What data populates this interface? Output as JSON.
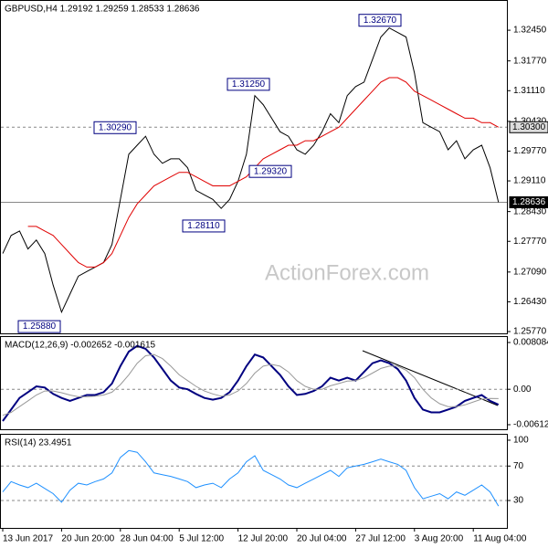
{
  "chart_data": [
    {
      "type": "line",
      "title": "GBPUSD,H4  1.29192 1.29259 1.28533 1.28636",
      "watermark": "ActionForex.com",
      "ylim": [
        1.2573,
        1.3312
      ],
      "yticks": [
        {
          "value": 1.3245,
          "label": "1.32450"
        },
        {
          "value": 1.3177,
          "label": "1.31770"
        },
        {
          "value": 1.3111,
          "label": "1.31110"
        },
        {
          "value": 1.3043,
          "label": "1.30430"
        },
        {
          "value": 1.2977,
          "label": "1.29770"
        },
        {
          "value": 1.2911,
          "label": "1.29110"
        },
        {
          "value": 1.2843,
          "label": "1.28430"
        },
        {
          "value": 1.2777,
          "label": "1.27770"
        },
        {
          "value": 1.2709,
          "label": "1.27090"
        },
        {
          "value": 1.2643,
          "label": "1.26430"
        },
        {
          "value": 1.2577,
          "label": "1.25770"
        }
      ],
      "levels": [
        {
          "value": 1.303,
          "label": "1.30300"
        },
        {
          "value": 1.28636,
          "label": "1.28636"
        }
      ],
      "annotations": [
        {
          "value": 1.3267,
          "label": "1.32670"
        },
        {
          "value": 1.3125,
          "label": "1.31250"
        },
        {
          "value": 1.3029,
          "label": "1.30290"
        },
        {
          "value": 1.2932,
          "label": "1.29320"
        },
        {
          "value": 1.2811,
          "label": "1.28110"
        },
        {
          "value": 1.2588,
          "label": "1.25880"
        }
      ],
      "series": [
        {
          "color": "#000000",
          "values": [
            1.275,
            1.279,
            1.28,
            1.276,
            1.278,
            1.275,
            1.268,
            1.262,
            1.266,
            1.27,
            1.271,
            1.272,
            1.273,
            1.277,
            1.287,
            1.297,
            1.299,
            1.301,
            1.297,
            1.295,
            1.296,
            1.296,
            1.294,
            1.289,
            1.288,
            1.287,
            1.285,
            1.287,
            1.291,
            1.297,
            1.31,
            1.308,
            1.305,
            1.302,
            1.301,
            1.298,
            1.297,
            1.299,
            1.302,
            1.306,
            1.304,
            1.31,
            1.312,
            1.313,
            1.318,
            1.323,
            1.325,
            1.324,
            1.323,
            1.315,
            1.304,
            1.303,
            1.302,
            1.298,
            1.3,
            1.296,
            1.298,
            1.299,
            1.294,
            1.28636
          ]
        },
        {
          "color": "#e00000",
          "values": [
            null,
            null,
            null,
            1.281,
            1.281,
            1.28,
            1.279,
            1.277,
            1.275,
            1.273,
            1.272,
            1.272,
            1.273,
            1.275,
            1.279,
            1.283,
            1.286,
            1.288,
            1.29,
            1.291,
            1.292,
            1.293,
            1.293,
            1.292,
            1.291,
            1.29,
            1.29,
            1.29,
            1.291,
            1.292,
            1.294,
            1.296,
            1.297,
            1.298,
            1.299,
            1.299,
            1.3,
            1.3,
            1.301,
            1.302,
            1.303,
            1.305,
            1.307,
            1.309,
            1.311,
            1.313,
            1.314,
            1.314,
            1.313,
            1.311,
            1.31,
            1.309,
            1.308,
            1.307,
            1.306,
            1.305,
            1.305,
            1.304,
            1.304,
            1.303
          ]
        }
      ]
    },
    {
      "type": "line",
      "title": "MACD(12,26,9) -0.002652 -0.001615",
      "ylim": [
        -0.006917,
        0.009189
      ],
      "yticks": [
        0.008084,
        {
          "value": 0,
          "label": "0.00"
        },
        -0.006127
      ],
      "levels": [
        0
      ],
      "series": [
        {
          "color": "#000080",
          "values": [
            -0.0055,
            -0.0035,
            -0.0015,
            -0.0005,
            0.0005,
            0.0003,
            -0.0008,
            -0.0015,
            -0.002,
            -0.0015,
            -0.001,
            -0.001,
            -0.0005,
            0.001,
            0.004,
            0.0065,
            0.0075,
            0.007,
            0.0055,
            0.0035,
            0.0015,
            0.0003,
            0,
            -0.0008,
            -0.0015,
            -0.0018,
            -0.0015,
            -0.0005,
            0.0015,
            0.004,
            0.006,
            0.0055,
            0.004,
            0.0025,
            0.0005,
            -0.001,
            -0.0008,
            -0.0003,
            0.0005,
            0.002,
            0.0015,
            0.002,
            0.0015,
            0.003,
            0.0045,
            0.005,
            0.0045,
            0.0035,
            0.0015,
            -0.0015,
            -0.0035,
            -0.004,
            -0.004,
            -0.0035,
            -0.003,
            -0.002,
            -0.0015,
            -0.001,
            -0.002,
            -0.002652
          ]
        },
        {
          "color": "#999999",
          "values": [
            -0.0045,
            -0.004,
            -0.003,
            -0.002,
            -0.001,
            -0.0003,
            -0.0003,
            -0.0006,
            -0.001,
            -0.0013,
            -0.0013,
            -0.0012,
            -0.001,
            -0.0005,
            0.0008,
            0.0025,
            0.0045,
            0.0058,
            0.006,
            0.0053,
            0.004,
            0.0025,
            0.0015,
            0.0005,
            -0.0003,
            -0.0008,
            -0.0012,
            -0.001,
            -0.0003,
            0.001,
            0.0028,
            0.004,
            0.0043,
            0.004,
            0.003,
            0.0015,
            0.0005,
            0,
            0,
            0.0006,
            0.001,
            0.0014,
            0.0015,
            0.002,
            0.0028,
            0.0036,
            0.004,
            0.004,
            0.0033,
            0.002,
            0,
            -0.0015,
            -0.0025,
            -0.003,
            -0.003,
            -0.0027,
            -0.0022,
            -0.0017,
            -0.0016,
            -0.001615
          ]
        }
      ]
    },
    {
      "type": "line",
      "title": "RSI(14) 23.4951",
      "ylim": [
        -1.8,
        107.4
      ],
      "yticks": [
        100,
        70,
        30
      ],
      "levels": [
        70,
        30
      ],
      "categories": [
        "13 Jun 2017",
        null,
        null,
        null,
        null,
        null,
        null,
        "20 Jun 20:00",
        null,
        null,
        null,
        null,
        null,
        null,
        "28 Jun 04:00",
        null,
        null,
        null,
        null,
        null,
        null,
        "5 Jul 12:00",
        null,
        null,
        null,
        null,
        null,
        null,
        "12 Jul 20:00",
        null,
        null,
        null,
        null,
        null,
        null,
        "20 Jul 04:00",
        null,
        null,
        null,
        null,
        null,
        null,
        "27 Jul 12:00",
        null,
        null,
        null,
        null,
        null,
        null,
        "3 Aug 20:00",
        null,
        null,
        null,
        null,
        null,
        null,
        "11 Aug 04:00",
        null,
        null,
        null
      ],
      "series": [
        {
          "color": "#1e90ff",
          "values": [
            40,
            52,
            48,
            45,
            50,
            44,
            38,
            28,
            42,
            50,
            48,
            52,
            55,
            62,
            80,
            88,
            86,
            75,
            62,
            60,
            58,
            55,
            52,
            45,
            48,
            50,
            45,
            55,
            62,
            75,
            82,
            65,
            60,
            55,
            48,
            45,
            50,
            55,
            60,
            65,
            58,
            68,
            70,
            72,
            75,
            78,
            75,
            72,
            65,
            45,
            32,
            35,
            38,
            32,
            40,
            36,
            42,
            48,
            40,
            23.4951
          ]
        }
      ]
    }
  ]
}
